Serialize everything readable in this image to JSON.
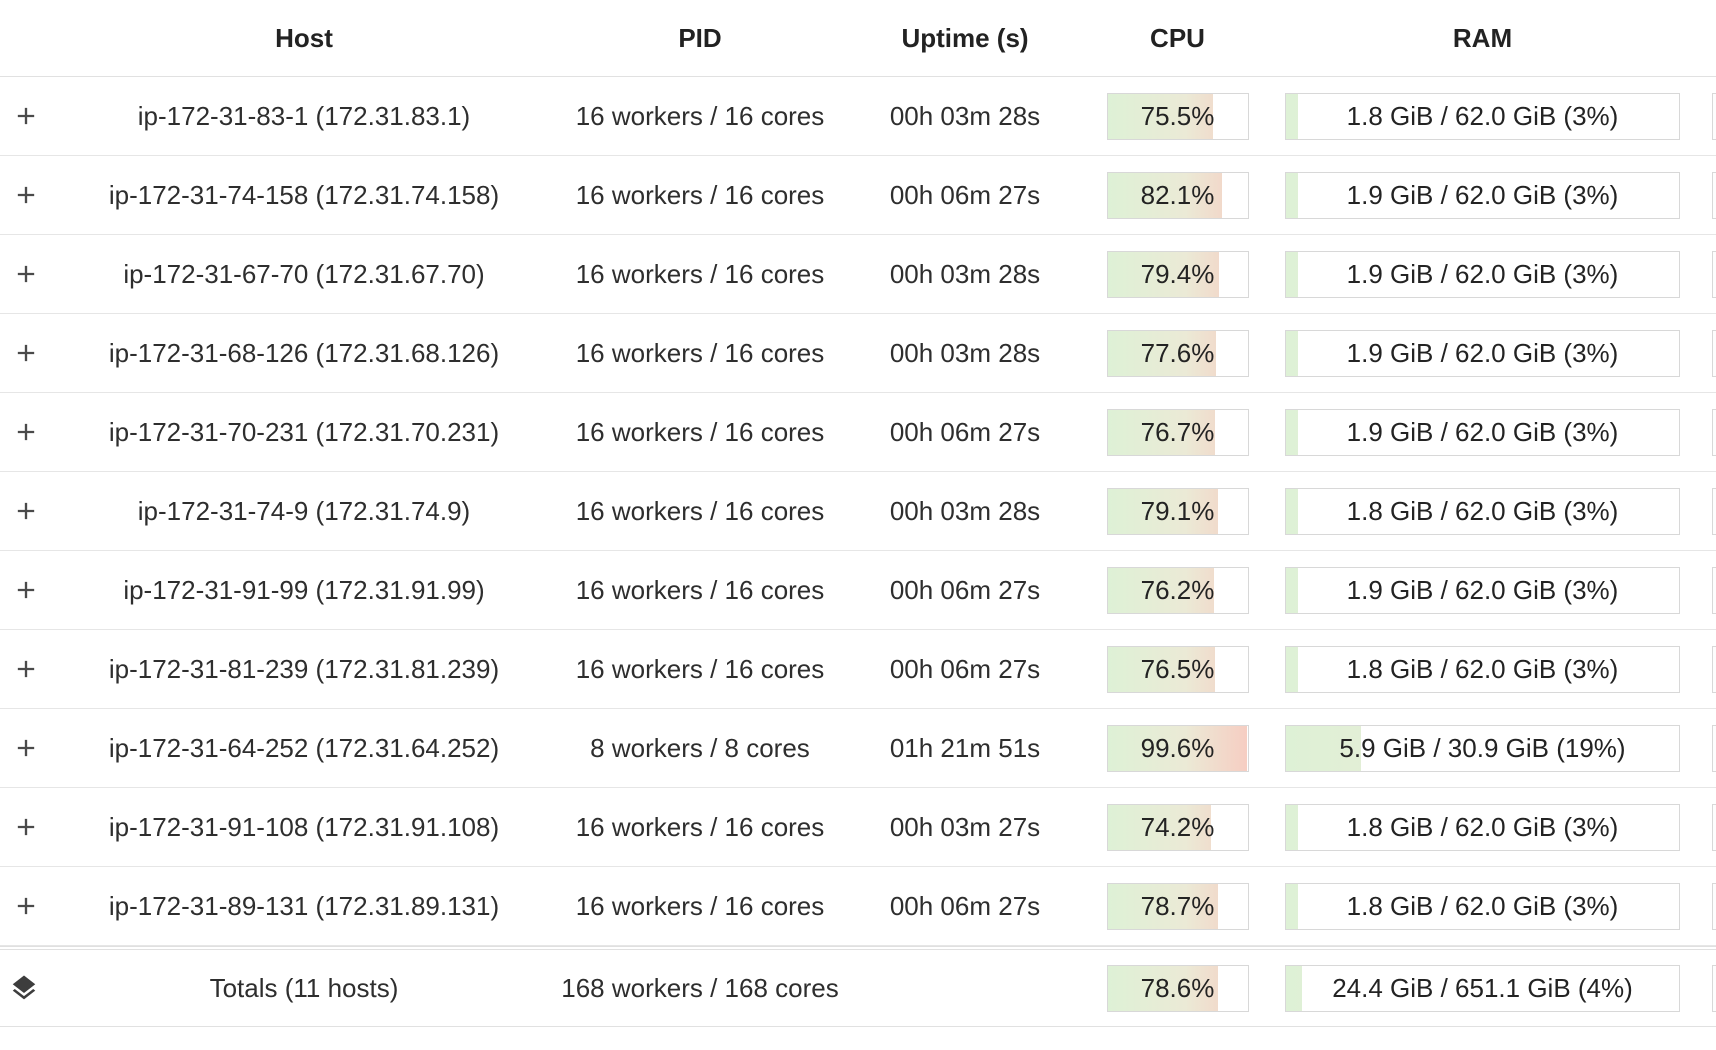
{
  "table": {
    "columns": [
      {
        "key": "host",
        "label": "Host"
      },
      {
        "key": "pid",
        "label": "PID"
      },
      {
        "key": "uptime",
        "label": "Uptime (s)"
      },
      {
        "key": "cpu",
        "label": "CPU"
      },
      {
        "key": "ram",
        "label": "RAM"
      }
    ],
    "rows": [
      {
        "host": "ip-172-31-83-1 (172.31.83.1)",
        "pid": "16 workers / 16 cores",
        "uptime": "00h 03m 28s",
        "cpu_label": "75.5%",
        "cpu_pct": 75.5,
        "ram_label": "1.8 GiB / 62.0 GiB (3%)",
        "ram_pct": 3
      },
      {
        "host": "ip-172-31-74-158 (172.31.74.158)",
        "pid": "16 workers / 16 cores",
        "uptime": "00h 06m 27s",
        "cpu_label": "82.1%",
        "cpu_pct": 82.1,
        "ram_label": "1.9 GiB / 62.0 GiB (3%)",
        "ram_pct": 3
      },
      {
        "host": "ip-172-31-67-70 (172.31.67.70)",
        "pid": "16 workers / 16 cores",
        "uptime": "00h 03m 28s",
        "cpu_label": "79.4%",
        "cpu_pct": 79.4,
        "ram_label": "1.9 GiB / 62.0 GiB (3%)",
        "ram_pct": 3
      },
      {
        "host": "ip-172-31-68-126 (172.31.68.126)",
        "pid": "16 workers / 16 cores",
        "uptime": "00h 03m 28s",
        "cpu_label": "77.6%",
        "cpu_pct": 77.6,
        "ram_label": "1.9 GiB / 62.0 GiB (3%)",
        "ram_pct": 3
      },
      {
        "host": "ip-172-31-70-231 (172.31.70.231)",
        "pid": "16 workers / 16 cores",
        "uptime": "00h 06m 27s",
        "cpu_label": "76.7%",
        "cpu_pct": 76.7,
        "ram_label": "1.9 GiB / 62.0 GiB (3%)",
        "ram_pct": 3
      },
      {
        "host": "ip-172-31-74-9 (172.31.74.9)",
        "pid": "16 workers / 16 cores",
        "uptime": "00h 03m 28s",
        "cpu_label": "79.1%",
        "cpu_pct": 79.1,
        "ram_label": "1.8 GiB / 62.0 GiB (3%)",
        "ram_pct": 3
      },
      {
        "host": "ip-172-31-91-99 (172.31.91.99)",
        "pid": "16 workers / 16 cores",
        "uptime": "00h 06m 27s",
        "cpu_label": "76.2%",
        "cpu_pct": 76.2,
        "ram_label": "1.9 GiB / 62.0 GiB (3%)",
        "ram_pct": 3
      },
      {
        "host": "ip-172-31-81-239 (172.31.81.239)",
        "pid": "16 workers / 16 cores",
        "uptime": "00h 06m 27s",
        "cpu_label": "76.5%",
        "cpu_pct": 76.5,
        "ram_label": "1.8 GiB / 62.0 GiB (3%)",
        "ram_pct": 3
      },
      {
        "host": "ip-172-31-64-252 (172.31.64.252)",
        "pid": "8 workers / 8 cores",
        "uptime": "01h 21m 51s",
        "cpu_label": "99.6%",
        "cpu_pct": 99.6,
        "ram_label": "5.9 GiB / 30.9 GiB (19%)",
        "ram_pct": 19
      },
      {
        "host": "ip-172-31-91-108 (172.31.91.108)",
        "pid": "16 workers / 16 cores",
        "uptime": "00h 03m 27s",
        "cpu_label": "74.2%",
        "cpu_pct": 74.2,
        "ram_label": "1.8 GiB / 62.0 GiB (3%)",
        "ram_pct": 3
      },
      {
        "host": "ip-172-31-89-131 (172.31.89.131)",
        "pid": "16 workers / 16 cores",
        "uptime": "00h 06m 27s",
        "cpu_label": "78.7%",
        "cpu_pct": 78.7,
        "ram_label": "1.8 GiB / 62.0 GiB (3%)",
        "ram_pct": 3
      }
    ],
    "totals": {
      "host": "Totals (11 hosts)",
      "pid": "168 workers / 168 cores",
      "uptime": "",
      "cpu_label": "78.6%",
      "cpu_pct": 78.6,
      "ram_label": "24.4 GiB / 651.1 GiB (4%)",
      "ram_pct": 4
    }
  },
  "icons": {
    "expand_row": "plus-icon",
    "totals_marker": "layers-icon"
  },
  "colors": {
    "bar_gradient_green": "#def1d6",
    "bar_gradient_mid": "#ebead6",
    "bar_gradient_red": "#f6cdc2",
    "bar_border": "#d8d8d8",
    "divider": "#e1e1e1",
    "text": "#2e2e2e",
    "icon": "#4a4a4a"
  }
}
